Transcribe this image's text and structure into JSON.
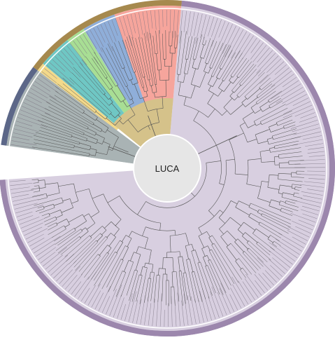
{
  "center": {
    "label": "LUCA"
  },
  "colors": {
    "background": "#ffffff",
    "archaea_outer": "#9c87ad",
    "archaea_fill": "#d8cfe0",
    "clade_purple_tint": "#dcd4e3",
    "outer_brown": "#a6894e",
    "outer_slate": "#5c6788",
    "wedge_salmon": "#f6a59c",
    "wedge_blue": "#8faed9",
    "wedge_green": "#a8de94",
    "wedge_teal": "#6fc7c4",
    "wedge_yellow": "#f3d98a",
    "wedge_gray": "#a9b3b4",
    "wedge_tan": "#d5c28a",
    "branch": "#555555",
    "center_disc": "#e6e6e6"
  },
  "wedges": [
    {
      "id": "archaea-main",
      "color_key": "archaea_fill",
      "outer_key": "archaea_outer"
    },
    {
      "id": "salmon-clade",
      "color_key": "wedge_salmon",
      "outer_key": "outer_brown"
    },
    {
      "id": "blue-clade",
      "color_key": "wedge_blue",
      "outer_key": "outer_brown"
    },
    {
      "id": "green-clade",
      "color_key": "wedge_green",
      "outer_key": "outer_brown"
    },
    {
      "id": "teal-clade",
      "color_key": "wedge_teal",
      "outer_key": "outer_brown"
    },
    {
      "id": "yellow-clade",
      "color_key": "wedge_yellow",
      "outer_key": "outer_brown"
    },
    {
      "id": "gray-clade",
      "color_key": "wedge_gray",
      "outer_key": "outer_slate"
    }
  ]
}
